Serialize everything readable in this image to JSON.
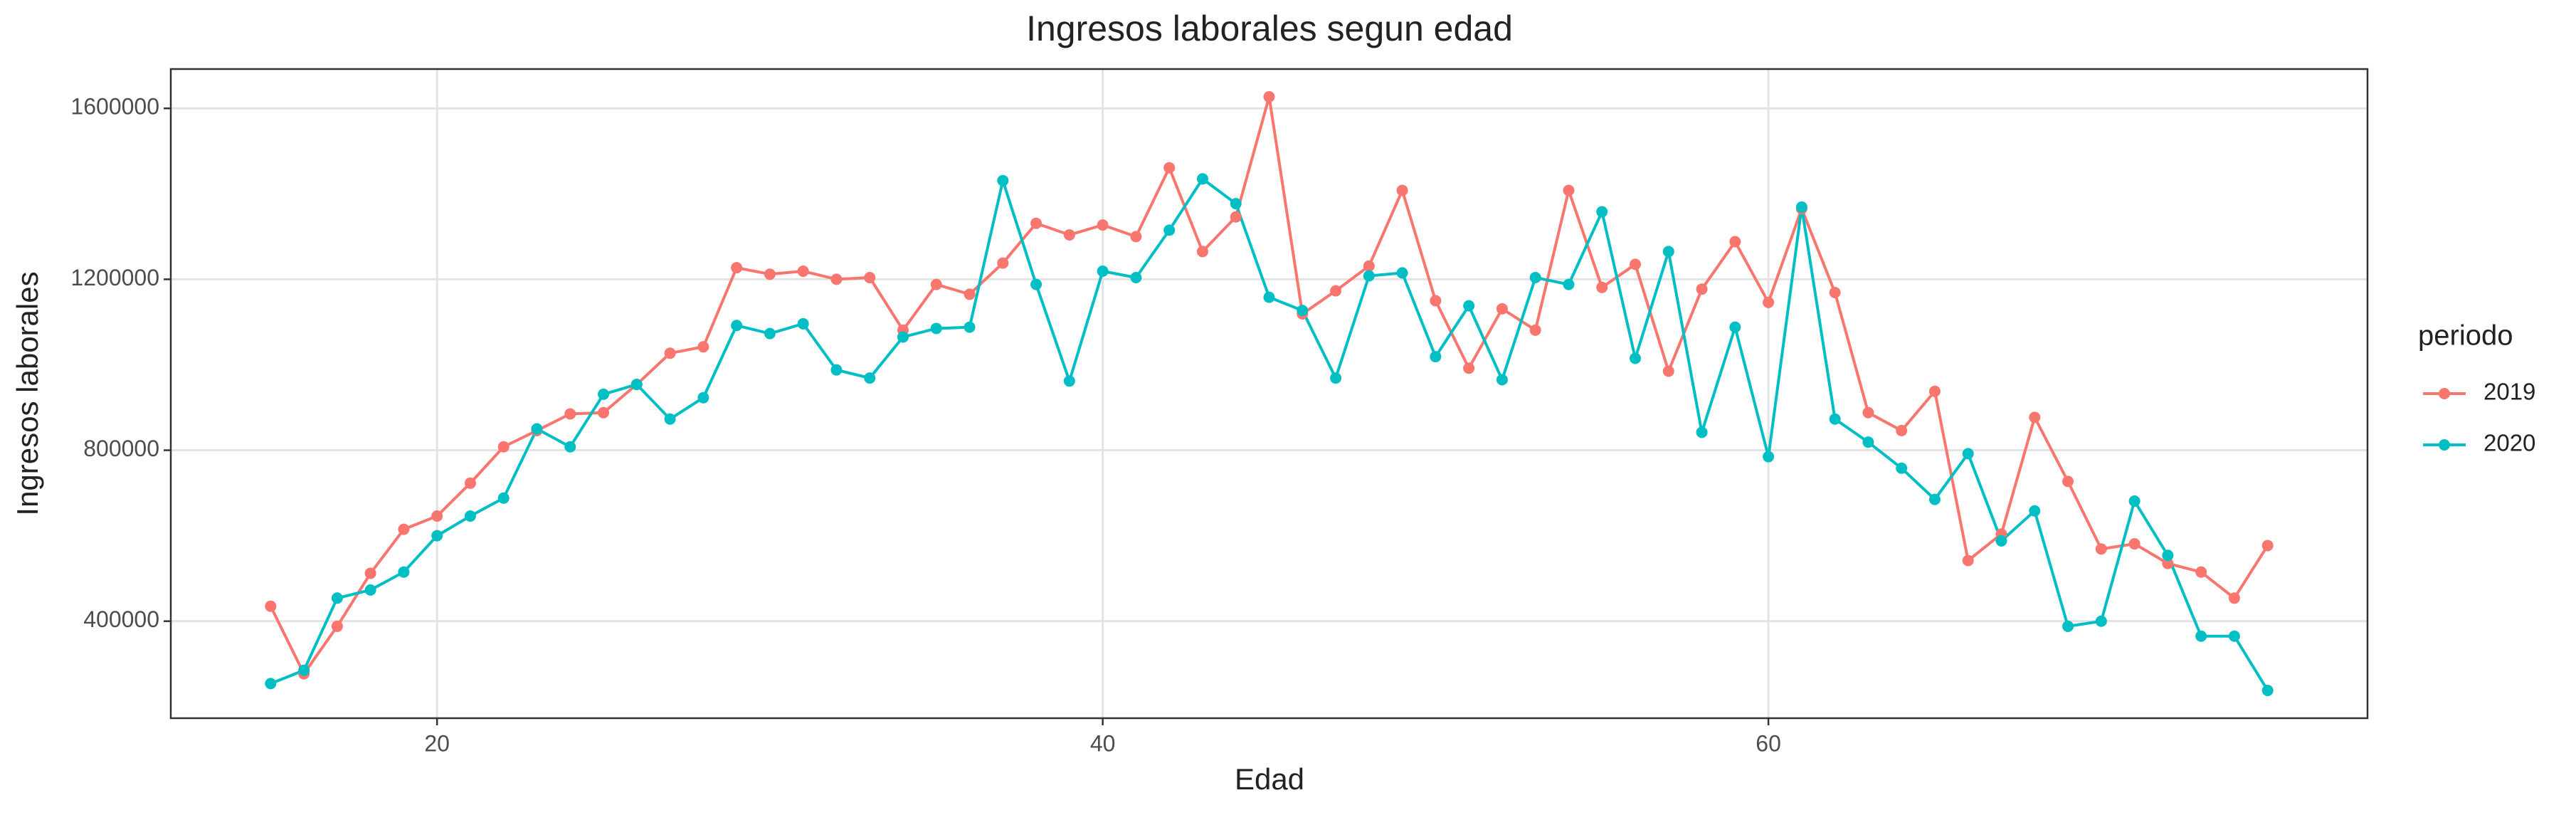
{
  "chart_data": {
    "type": "line",
    "title": "Ingresos laborales segun edad",
    "x_label": "Edad",
    "y_label": "Ingresos laborales",
    "legend_title": "periodo",
    "x": [
      15,
      16,
      17,
      18,
      19,
      20,
      21,
      22,
      23,
      24,
      25,
      26,
      27,
      28,
      29,
      30,
      31,
      32,
      33,
      34,
      35,
      36,
      37,
      38,
      39,
      40,
      41,
      42,
      43,
      44,
      45,
      46,
      47,
      48,
      49,
      50,
      51,
      52,
      53,
      54,
      55,
      56,
      57,
      58,
      59,
      60,
      61,
      62,
      63,
      64,
      65,
      66,
      67,
      68,
      69,
      70,
      71,
      72,
      73,
      74,
      75
    ],
    "series": [
      {
        "name": "2019",
        "color": "#F8766D",
        "values": [
          435000,
          277000,
          388000,
          512000,
          615000,
          646000,
          723000,
          808000,
          846000,
          885000,
          888000,
          954000,
          1027000,
          1042000,
          1227000,
          1212000,
          1219000,
          1200000,
          1204000,
          1081000,
          1188000,
          1165000,
          1238000,
          1331000,
          1304000,
          1327000,
          1300000,
          1461000,
          1265000,
          1346000,
          1627000,
          1119000,
          1173000,
          1231000,
          1408000,
          1150000,
          992000,
          1131000,
          1081000,
          1408000,
          1181000,
          1235000,
          985000,
          1177000,
          1288000,
          1146000,
          1365000,
          1169000,
          888000,
          846000,
          938000,
          542000,
          604000,
          877000,
          727000,
          569000,
          581000,
          535000,
          515000,
          454000,
          577000
        ]
      },
      {
        "name": "2020",
        "color": "#00BFC4",
        "values": [
          254000,
          285000,
          454000,
          473000,
          515000,
          600000,
          646000,
          688000,
          850000,
          808000,
          931000,
          954000,
          873000,
          923000,
          1092000,
          1073000,
          1096000,
          988000,
          969000,
          1065000,
          1085000,
          1088000,
          1431000,
          1188000,
          962000,
          1219000,
          1204000,
          1315000,
          1435000,
          1377000,
          1158000,
          1127000,
          969000,
          1208000,
          1215000,
          1019000,
          1138000,
          965000,
          1204000,
          1188000,
          1358000,
          1015000,
          1265000,
          842000,
          1088000,
          785000,
          1369000,
          873000,
          819000,
          758000,
          685000,
          792000,
          588000,
          658000,
          388000,
          400000,
          681000,
          554000,
          365000,
          365000,
          238000
        ]
      }
    ],
    "xlim": [
      12,
      78
    ],
    "xticks": [
      20,
      40,
      60
    ],
    "ylim": [
      173000,
      1692000
    ],
    "yticks": [
      400000,
      800000,
      1200000,
      1600000
    ],
    "grid": true,
    "legend_position": "right"
  }
}
